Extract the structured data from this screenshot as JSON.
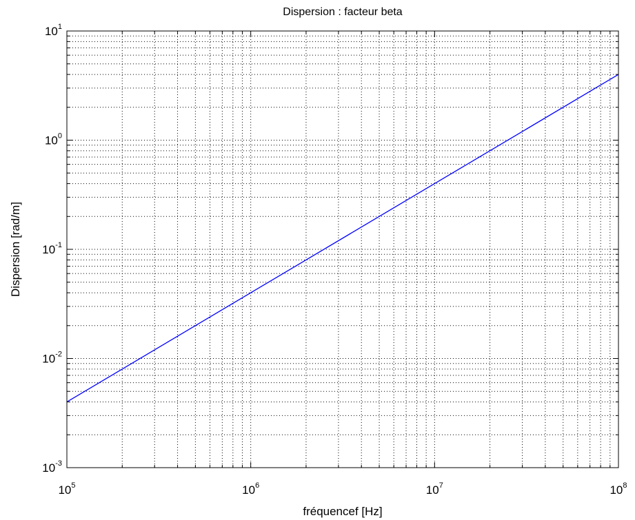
{
  "chart_data": {
    "type": "line",
    "title": "Dispersion : facteur beta",
    "xlabel": "fréquencef [Hz]",
    "ylabel": "Dispersion [rad/m]",
    "xscale": "log",
    "yscale": "log",
    "xlim": [
      100000,
      100000000
    ],
    "ylim": [
      0.001,
      10
    ],
    "grid": true,
    "grid_minor": true,
    "x_ticks": [
      {
        "base": "10",
        "exp": "5",
        "value": 100000
      },
      {
        "base": "10",
        "exp": "6",
        "value": 1000000
      },
      {
        "base": "10",
        "exp": "7",
        "value": 10000000
      },
      {
        "base": "10",
        "exp": "8",
        "value": 100000000
      }
    ],
    "y_ticks": [
      {
        "base": "10",
        "exp": "-3",
        "value": 0.001
      },
      {
        "base": "10",
        "exp": "-2",
        "value": 0.01
      },
      {
        "base": "10",
        "exp": "-1",
        "value": 0.1
      },
      {
        "base": "10",
        "exp": "0",
        "value": 1
      },
      {
        "base": "10",
        "exp": "1",
        "value": 10
      }
    ],
    "series": [
      {
        "color": "#0000ff",
        "x": [
          100000,
          1000000,
          10000000,
          100000000
        ],
        "y": [
          0.004,
          0.04,
          0.4,
          4
        ]
      }
    ]
  }
}
